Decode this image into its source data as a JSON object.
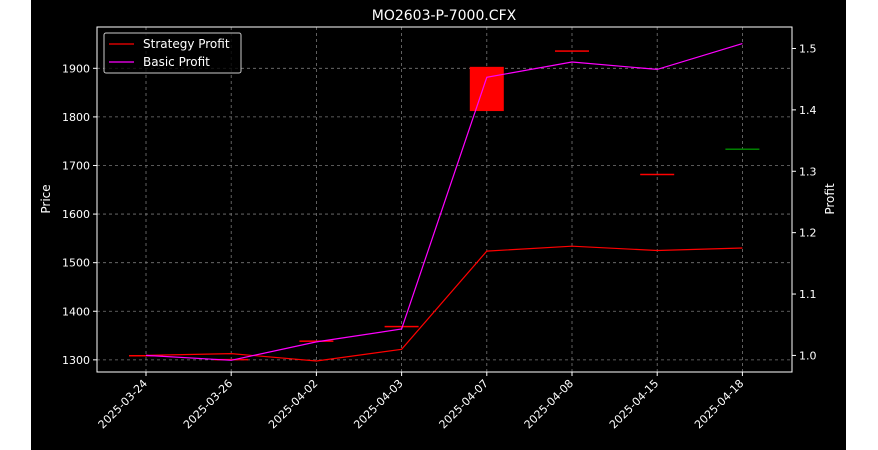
{
  "chart_data": {
    "type": "candlestick+line",
    "title": "MO2603-P-7000.CFX",
    "ylabel_left": "Price",
    "ylabel_right": "Profit",
    "categories": [
      "2025-03-24",
      "2025-03-26",
      "2025-04-02",
      "2025-04-03",
      "2025-04-07",
      "2025-04-08",
      "2025-04-15",
      "2025-04-18"
    ],
    "ylim_left": [
      1275,
      1985
    ],
    "yticks_left": [
      1300,
      1400,
      1500,
      1600,
      1700,
      1800,
      1900
    ],
    "ylim_right": [
      0.973,
      1.535
    ],
    "yticks_right": [
      1.0,
      1.1,
      1.2,
      1.3,
      1.4,
      1.5
    ],
    "grid": true,
    "legend_position": "top-left",
    "candles": [
      {
        "date": "2025-03-24",
        "open": 1310,
        "close": 1310,
        "color": "#ff0000"
      },
      {
        "date": "2025-03-26",
        "open": 1302,
        "close": 1302,
        "color": "#ff0000"
      },
      {
        "date": "2025-04-02",
        "open": 1340,
        "close": 1340,
        "color": "#ff0000"
      },
      {
        "date": "2025-04-03",
        "open": 1370,
        "close": 1370,
        "color": "#ff0000"
      },
      {
        "date": "2025-04-07",
        "open": 1903,
        "close": 1812,
        "color": "#ff0000"
      },
      {
        "date": "2025-04-08",
        "open": 1937,
        "close": 1937,
        "color": "#ff0000"
      },
      {
        "date": "2025-04-15",
        "open": 1683,
        "close": 1683,
        "color": "#ff0000"
      },
      {
        "date": "2025-04-18",
        "open": 1735,
        "close": 1734,
        "color": "#008000"
      }
    ],
    "series": [
      {
        "name": "Strategy Profit",
        "color": "#ff0000",
        "values": [
          1.0,
          1.003,
          0.991,
          1.01,
          1.17,
          1.178,
          1.171,
          1.175
        ]
      },
      {
        "name": "Basic Profit",
        "color": "#ff00ff",
        "values": [
          1.0,
          0.992,
          1.022,
          1.043,
          1.453,
          1.478,
          1.466,
          1.508
        ]
      }
    ]
  }
}
